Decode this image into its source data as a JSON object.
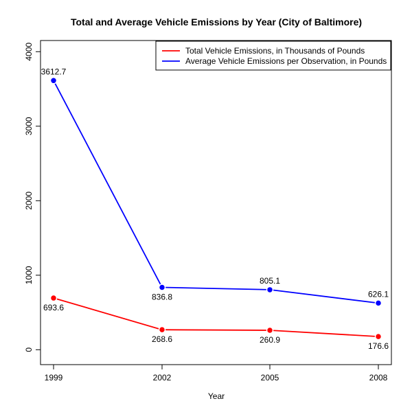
{
  "chart_data": {
    "type": "line",
    "title": "Total and Average Vehicle Emissions by Year (City of Baltimore)",
    "xlabel": "Year",
    "ylabel": "",
    "categories": [
      "1999",
      "2002",
      "2005",
      "2008"
    ],
    "ylim": [
      -200,
      4150
    ],
    "yticks": [
      0,
      1000,
      2000,
      3000,
      4000
    ],
    "grid": false,
    "legend_position": "top-right",
    "series": [
      {
        "name": "Total Vehicle Emissions, in Thousands of Pounds",
        "color": "#ff0000",
        "values": [
          693.6,
          268.6,
          260.9,
          176.6
        ],
        "labels": [
          "693.6",
          "268.6",
          "260.9",
          "176.6"
        ],
        "label_position": "below"
      },
      {
        "name": "Average Vehicle Emissions per Observation, in Pounds",
        "color": "#0000ff",
        "values": [
          3612.7,
          836.8,
          805.1,
          626.1
        ],
        "labels": [
          "3612.7",
          "836.8",
          "805.1",
          "626.1"
        ],
        "label_position": [
          "above",
          "below",
          "above",
          "above"
        ]
      }
    ]
  }
}
